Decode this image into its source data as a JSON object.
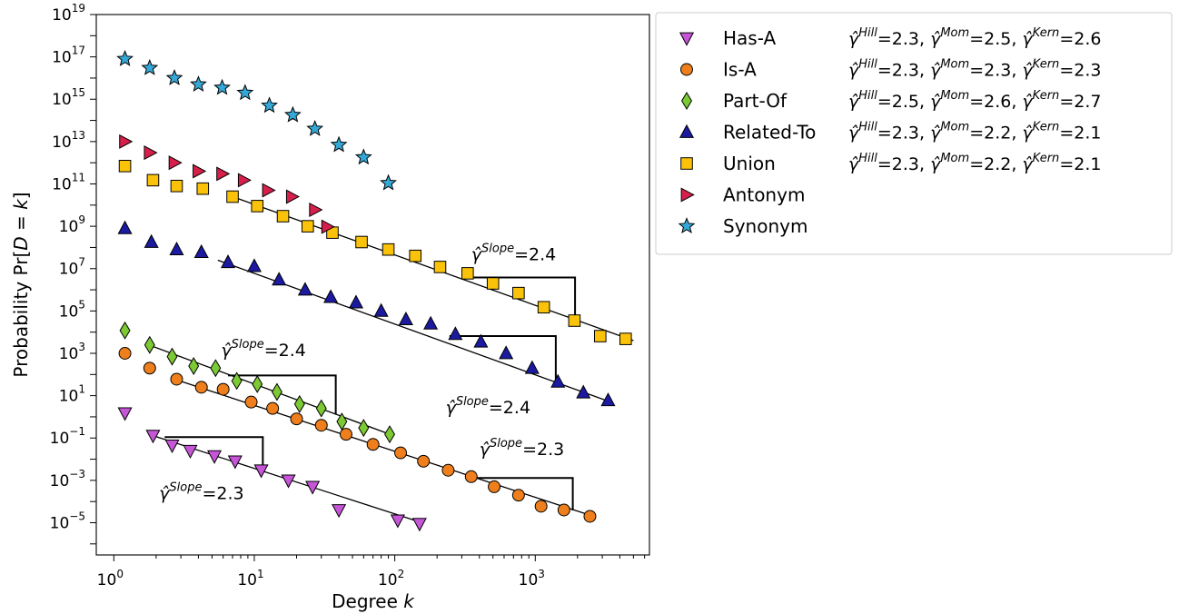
{
  "chart_data": {
    "type": "scatter",
    "xlabel": "Degree k",
    "xlabel_main": "Degree ",
    "xlabel_var": "k",
    "ylabel": "Probability Pr[D = k]",
    "ylabel_main": "Probability Pr[",
    "ylabel_var1": "D",
    "ylabel_eq": " = ",
    "ylabel_var2": "k",
    "ylabel_end": "]",
    "x_scale": "log",
    "y_scale": "log",
    "xlim": [
      0.75,
      6500
    ],
    "ylim": [
      3e-07,
      1e+19
    ],
    "x_tick_labels": [
      {
        "value": 1,
        "base": "10",
        "exp": "0"
      },
      {
        "value": 10,
        "base": "10",
        "exp": "1"
      },
      {
        "value": 100,
        "base": "10",
        "exp": "2"
      },
      {
        "value": 1000,
        "base": "10",
        "exp": "3"
      }
    ],
    "y_tick_labels": [
      {
        "value": 1e-05,
        "base": "10",
        "exp": "−5"
      },
      {
        "value": 0.001,
        "base": "10",
        "exp": "−3"
      },
      {
        "value": 0.1,
        "base": "10",
        "exp": "−1"
      },
      {
        "value": 10.0,
        "base": "10",
        "exp": "1"
      },
      {
        "value": 1000.0,
        "base": "10",
        "exp": "3"
      },
      {
        "value": 100000.0,
        "base": "10",
        "exp": "5"
      },
      {
        "value": 10000000.0,
        "base": "10",
        "exp": "7"
      },
      {
        "value": 1000000000.0,
        "base": "10",
        "exp": "9"
      },
      {
        "value": 100000000000.0,
        "base": "10",
        "exp": "11"
      },
      {
        "value": 10000000000000.0,
        "base": "10",
        "exp": "13"
      },
      {
        "value": 1000000000000000.0,
        "base": "10",
        "exp": "15"
      },
      {
        "value": 1e+17,
        "base": "10",
        "exp": "17"
      },
      {
        "value": 1e+19,
        "base": "10",
        "exp": "19"
      }
    ],
    "grid": false,
    "legend_position": "outside-right-top",
    "series": [
      {
        "name": "Has-A",
        "marker": "triangle-down",
        "color": "#c655d8",
        "estimates": {
          "hill": "2.3",
          "mom": "2.5",
          "kern": "2.6"
        },
        "points": [
          [
            1.2,
            1.5
          ],
          [
            1.9,
            0.13
          ],
          [
            2.6,
            0.045
          ],
          [
            3.5,
            0.025
          ],
          [
            5.2,
            0.014
          ],
          [
            7.3,
            0.008
          ],
          [
            11.2,
            0.003
          ],
          [
            17.5,
            0.001
          ],
          [
            26,
            0.0005
          ],
          [
            40,
            4e-05
          ],
          [
            105,
            1.3e-05
          ],
          [
            150,
            9e-06
          ]
        ],
        "fit": {
          "x": [
            1.9,
            160
          ],
          "y": [
            0.13,
            9.5e-06
          ]
        },
        "slope": {
          "value": "2.3",
          "x1": 2.3,
          "x2": 11.5,
          "y_top": 0.11,
          "y_bottom": 0.0025,
          "label_x": 2.1,
          "label_y": 0.00013
        }
      },
      {
        "name": "Is-A",
        "marker": "circle",
        "color": "#ee7f1c",
        "estimates": {
          "hill": "2.3",
          "mom": "2.3",
          "kern": "2.3"
        },
        "points": [
          [
            1.2,
            1000
          ],
          [
            1.8,
            200
          ],
          [
            2.8,
            60
          ],
          [
            4.2,
            25
          ],
          [
            6,
            20
          ],
          [
            9.5,
            5
          ],
          [
            13.5,
            2.5
          ],
          [
            20,
            0.8
          ],
          [
            30,
            0.4
          ],
          [
            45,
            0.15
          ],
          [
            70,
            0.05
          ],
          [
            110,
            0.02
          ],
          [
            160,
            0.008
          ],
          [
            240,
            0.003
          ],
          [
            350,
            0.0015
          ],
          [
            510,
            0.0005
          ],
          [
            760,
            0.0002
          ],
          [
            1100,
            6e-05
          ],
          [
            1600,
            4e-05
          ],
          [
            2450,
            2e-05
          ]
        ],
        "fit": {
          "x": [
            2.7,
            2600
          ],
          "y": [
            60,
            2e-05
          ]
        },
        "slope": {
          "value": "2.3",
          "x1": 380,
          "x2": 1850,
          "y_top": 0.0013,
          "y_bottom": 3.8e-05,
          "label_x": 400,
          "label_y": 0.016
        }
      },
      {
        "name": "Part-Of",
        "marker": "diamond",
        "color": "#7bc934",
        "estimates": {
          "hill": "2.5",
          "mom": "2.6",
          "kern": "2.7"
        },
        "points": [
          [
            1.2,
            12000
          ],
          [
            1.8,
            2500
          ],
          [
            2.6,
            700
          ],
          [
            3.7,
            250
          ],
          [
            5.3,
            200
          ],
          [
            7.5,
            50
          ],
          [
            10.5,
            35
          ],
          [
            14.5,
            15
          ],
          [
            21,
            4
          ],
          [
            30,
            2.5
          ],
          [
            42,
            0.6
          ],
          [
            60,
            0.3
          ],
          [
            92,
            0.15
          ]
        ],
        "fit": {
          "x": [
            1.8,
            95
          ],
          "y": [
            2400,
            0.14
          ]
        },
        "slope": {
          "value": "2.4",
          "x1": 6.5,
          "x2": 38,
          "y_top": 90,
          "y_bottom": 1.3,
          "label_x": 5.8,
          "label_y": 750
        }
      },
      {
        "name": "Related-To",
        "marker": "triangle-up",
        "color": "#1b1aa0",
        "estimates": {
          "hill": "2.3",
          "mom": "2.2",
          "kern": "2.1"
        },
        "points": [
          [
            1.2,
            800000000
          ],
          [
            1.85,
            180000000
          ],
          [
            2.8,
            80000000
          ],
          [
            4.2,
            60000000
          ],
          [
            6.5,
            20000000
          ],
          [
            10,
            13000000
          ],
          [
            15,
            3000000
          ],
          [
            23,
            1000000
          ],
          [
            35,
            450000
          ],
          [
            53,
            250000
          ],
          [
            80,
            100000
          ],
          [
            120,
            40000
          ],
          [
            180,
            25000
          ],
          [
            270,
            8000
          ],
          [
            410,
            3500
          ],
          [
            620,
            1000
          ],
          [
            950,
            200
          ],
          [
            1450,
            45
          ],
          [
            2200,
            14
          ],
          [
            3300,
            6
          ]
        ],
        "fit": {
          "x": [
            5.5,
            3600
          ],
          "y": [
            25000000,
            4.5
          ]
        },
        "slope": {
          "value": "2.4",
          "x1": 245,
          "x2": 1400,
          "y_top": 6500,
          "y_bottom": 40,
          "label_x": 230,
          "label_y": 1.5
        }
      },
      {
        "name": "Union",
        "marker": "square",
        "color": "#fac30a",
        "estimates": {
          "hill": "2.3",
          "mom": "2.2",
          "kern": "2.1"
        },
        "points": [
          [
            1.2,
            700000000000
          ],
          [
            1.9,
            150000000000
          ],
          [
            2.8,
            80000000000
          ],
          [
            4.3,
            60000000000
          ],
          [
            7,
            25000000000
          ],
          [
            10.5,
            9000000000
          ],
          [
            16,
            3000000000
          ],
          [
            24,
            1000000000
          ],
          [
            36,
            500000000
          ],
          [
            58,
            180000000
          ],
          [
            90,
            80000000
          ],
          [
            140,
            40000000
          ],
          [
            210,
            12000000
          ],
          [
            330,
            6000000
          ],
          [
            500,
            2000000
          ],
          [
            760,
            700000
          ],
          [
            1150,
            150000
          ],
          [
            1900,
            35000
          ],
          [
            2900,
            6500
          ],
          [
            4400,
            4800
          ]
        ],
        "fit": {
          "x": [
            7,
            5000
          ],
          "y": [
            25000000000,
            4000
          ]
        },
        "slope": {
          "value": "2.4",
          "x1": 330,
          "x2": 1920,
          "y_top": 3800000,
          "y_bottom": 60000,
          "label_x": 350,
          "label_y": 25000000
        }
      },
      {
        "name": "Antonym",
        "marker": "triangle-right",
        "color": "#d6204b",
        "estimates": null,
        "points": [
          [
            1.2,
            10000000000000
          ],
          [
            1.8,
            3000000000000
          ],
          [
            2.7,
            1000000000000
          ],
          [
            4,
            400000000000
          ],
          [
            5.9,
            300000000000
          ],
          [
            8.4,
            150000000000
          ],
          [
            12.5,
            50000000000
          ],
          [
            18.5,
            25000000000
          ],
          [
            27,
            6000000000
          ],
          [
            33,
            950000000
          ]
        ],
        "fit": null,
        "slope": null
      },
      {
        "name": "Synonym",
        "marker": "star",
        "color": "#36a8d6",
        "estimates": null,
        "points": [
          [
            1.2,
            80000000000000000
          ],
          [
            1.8,
            30000000000000000
          ],
          [
            2.7,
            10000000000000000
          ],
          [
            4,
            5000000000000000
          ],
          [
            5.9,
            3500000000000000
          ],
          [
            8.6,
            2000000000000000
          ],
          [
            12.8,
            500000000000000
          ],
          [
            18.8,
            180000000000000
          ],
          [
            27,
            40000000000000
          ],
          [
            40,
            7000000000000
          ],
          [
            60,
            1800000000000
          ],
          [
            90,
            110000000000
          ]
        ],
        "fit": null,
        "slope": null
      }
    ]
  },
  "text": {
    "gamma_hat": "γ̂",
    "hill_sup": "Hill",
    "mom_sup": "Mom",
    "kern_sup": "Kern",
    "slope_sup": "Slope",
    "eq": "=",
    "sep": ", "
  }
}
